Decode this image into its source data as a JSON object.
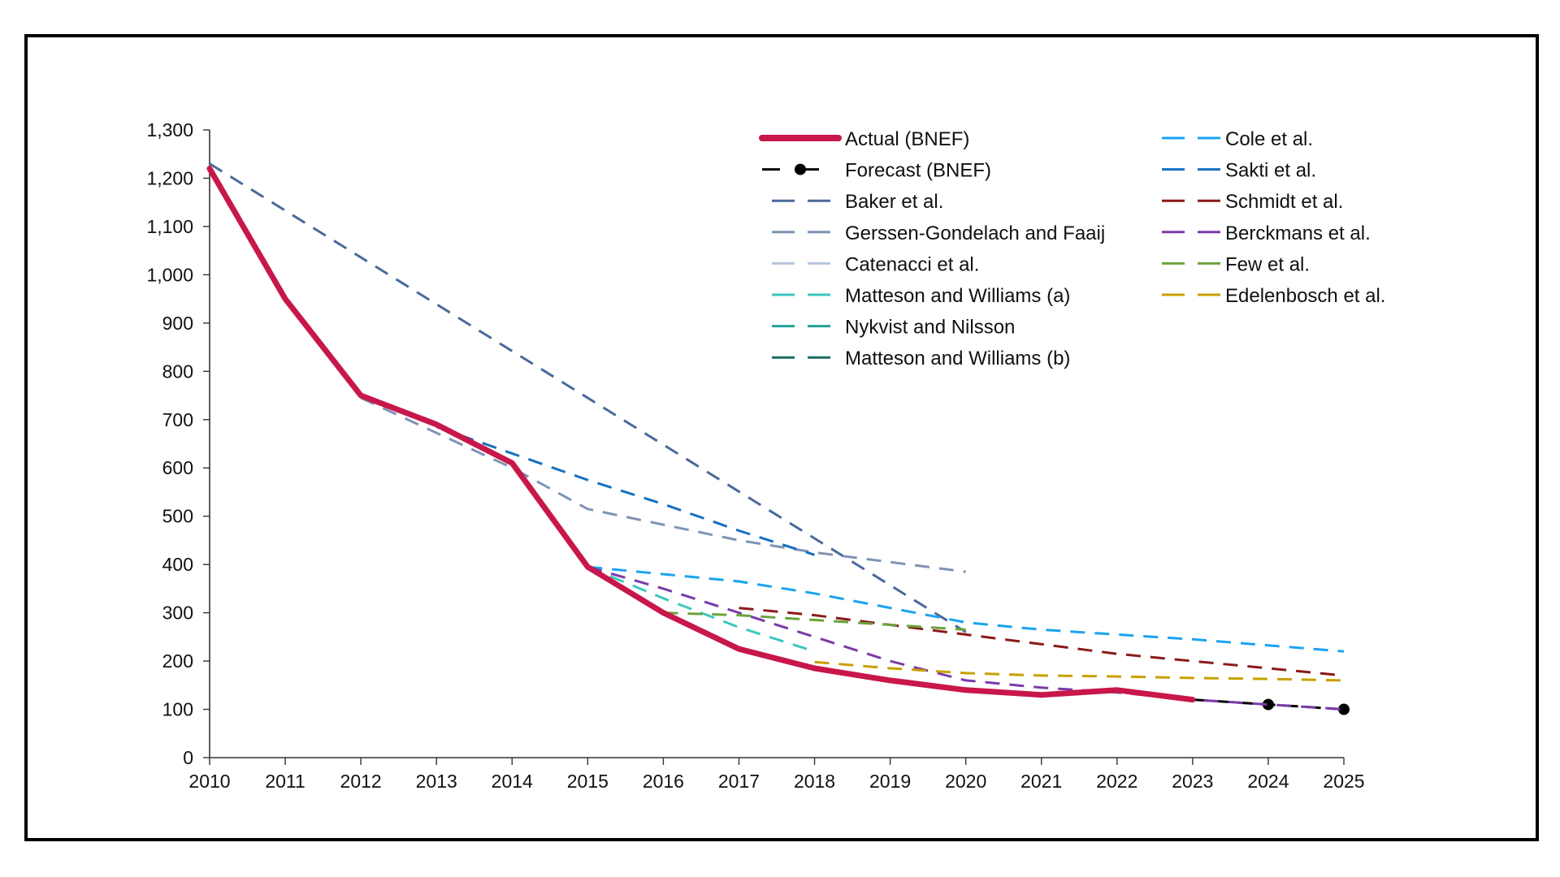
{
  "chart_data": {
    "type": "line",
    "title": "",
    "xlabel": "",
    "ylabel": "",
    "xlim": [
      2010,
      2025
    ],
    "ylim": [
      0,
      1300
    ],
    "x_ticks": [
      "2010",
      "2011",
      "2012",
      "2013",
      "2014",
      "2015",
      "2016",
      "2017",
      "2018",
      "2019",
      "2020",
      "2021",
      "2022",
      "2023",
      "2024",
      "2025"
    ],
    "y_ticks": [
      "0",
      "100",
      "200",
      "300",
      "400",
      "500",
      "600",
      "700",
      "800",
      "900",
      "1,000",
      "1,100",
      "1,200",
      "1,300"
    ],
    "grid": false,
    "legend_position": "top-right, two columns",
    "series": [
      {
        "name": "Actual (BNEF)",
        "color": "#c8174a",
        "style": "solid-thick",
        "x": [
          2010,
          2011,
          2012,
          2013,
          2014,
          2015,
          2016,
          2017,
          2018,
          2019,
          2020,
          2021,
          2022,
          2023
        ],
        "y": [
          1220,
          950,
          750,
          690,
          610,
          395,
          300,
          225,
          185,
          160,
          140,
          130,
          140,
          120
        ]
      },
      {
        "name": "Forecast (BNEF)",
        "color": "#000000",
        "style": "dash-dot-marker",
        "x": [
          2023,
          2024,
          2025
        ],
        "y": [
          120,
          110,
          100
        ]
      },
      {
        "name": "Baker et al.",
        "color": "#4a6a9a",
        "style": "dashed",
        "x": [
          2010,
          2020
        ],
        "y": [
          1230,
          260
        ]
      },
      {
        "name": "Gerssen-Gondelach and Faaij",
        "color": "#7f93b5",
        "style": "dashed",
        "x": [
          2012,
          2014,
          2015,
          2017,
          2018,
          2020
        ],
        "y": [
          745,
          600,
          515,
          450,
          425,
          385
        ]
      },
      {
        "name": "Catenacci et al.",
        "color": "#b7c5dc",
        "style": "dashed",
        "x": [],
        "y": []
      },
      {
        "name": "Matteson and Williams (a)",
        "color": "#3cc7bf",
        "style": "dashed",
        "x": [
          2015,
          2016,
          2017,
          2018
        ],
        "y": [
          395,
          330,
          270,
          220
        ]
      },
      {
        "name": "Nykvist and Nilsson",
        "color": "#22a396",
        "style": "dashed",
        "x": [],
        "y": []
      },
      {
        "name": "Matteson and Williams (b)",
        "color": "#1b6b63",
        "style": "dashed",
        "x": [],
        "y": []
      },
      {
        "name": "Cole et al.",
        "color": "#1aa3f0",
        "style": "dashed",
        "x": [
          2015,
          2017,
          2018,
          2020,
          2021,
          2022,
          2023,
          2025
        ],
        "y": [
          395,
          365,
          340,
          280,
          265,
          255,
          245,
          220
        ]
      },
      {
        "name": "Sakti et al.",
        "color": "#1670c2",
        "style": "dashed",
        "x": [
          2013,
          2014,
          2015,
          2016,
          2017,
          2018
        ],
        "y": [
          685,
          630,
          575,
          525,
          470,
          420
        ]
      },
      {
        "name": "Schmidt et al.",
        "color": "#8b1a1a",
        "style": "dashed",
        "x": [
          2017,
          2018,
          2019,
          2020,
          2021,
          2022,
          2023,
          2024,
          2025
        ],
        "y": [
          310,
          295,
          275,
          255,
          235,
          215,
          200,
          185,
          170
        ]
      },
      {
        "name": "Berckmans et al.",
        "color": "#7b3aa8",
        "style": "dashed",
        "x": [
          2015,
          2016,
          2017,
          2018,
          2019,
          2020,
          2021,
          2022,
          2023,
          2024,
          2025
        ],
        "y": [
          395,
          350,
          300,
          250,
          200,
          160,
          145,
          135,
          120,
          110,
          100
        ]
      },
      {
        "name": "Few et al.",
        "color": "#6aa33a",
        "style": "dashed",
        "x": [
          2016,
          2017,
          2018,
          2019,
          2020
        ],
        "y": [
          300,
          295,
          285,
          275,
          265
        ]
      },
      {
        "name": "Edelenbosch et al.",
        "color": "#c9a000",
        "style": "dashed",
        "x": [
          2018,
          2019,
          2020,
          2021,
          2022,
          2023,
          2024,
          2025
        ],
        "y": [
          198,
          185,
          175,
          170,
          168,
          165,
          163,
          160
        ]
      }
    ]
  }
}
